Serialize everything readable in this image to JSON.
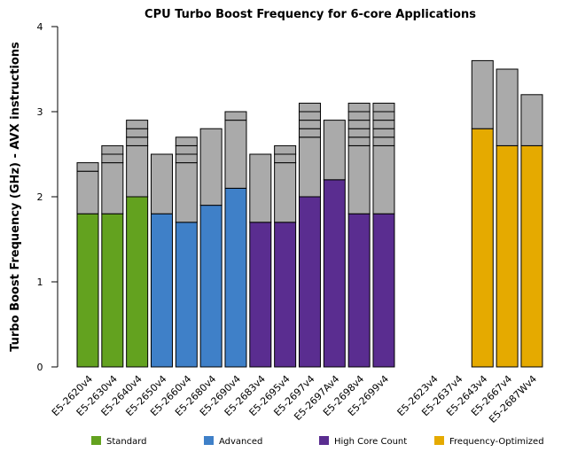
{
  "chart_data": {
    "type": "bar",
    "title": "CPU Turbo Boost Frequency for 6-core Applications",
    "y_label": "Turbo Boost Frequency (GHz) - AVX instructions",
    "categories": [
      "E5-2620v4",
      "E5-2630v4",
      "E5-2640v4",
      "E5-2650v4",
      "E5-2660v4",
      "E5-2680v4",
      "E5-2690v4",
      "E5-2683v4",
      "E5-2695v4",
      "E5-2697v4",
      "E5-2697Av4",
      "E5-2698v4",
      "E5-2699v4",
      null,
      "E5-2623v4",
      "E5-2637v4",
      "E5-2643v4",
      "E5-2667v4",
      "E5-2687Wv4"
    ],
    "series": [
      {
        "name": "Standard",
        "color": "#63a21f",
        "values": [
          1.8,
          1.8,
          2.0,
          null,
          null,
          null,
          null,
          null,
          null,
          null,
          null,
          null,
          null,
          null,
          null,
          null,
          null,
          null,
          null
        ]
      },
      {
        "name": "Advanced",
        "color": "#3f80c8",
        "values": [
          null,
          null,
          null,
          1.8,
          1.7,
          1.9,
          2.1,
          null,
          null,
          null,
          null,
          null,
          null,
          null,
          null,
          null,
          null,
          null,
          null
        ]
      },
      {
        "name": "High Core Count",
        "color": "#5a2d90",
        "values": [
          null,
          null,
          null,
          null,
          null,
          null,
          null,
          1.7,
          1.7,
          2.0,
          2.2,
          1.8,
          1.8,
          null,
          null,
          null,
          null,
          null,
          null
        ]
      },
      {
        "name": "Frequency-Optimized",
        "color": "#e5aa00",
        "values": [
          null,
          null,
          null,
          null,
          null,
          null,
          null,
          null,
          null,
          null,
          null,
          null,
          null,
          null,
          null,
          null,
          2.8,
          2.6,
          2.6
        ]
      }
    ],
    "turbo_color": "#aaaaaa",
    "turbo_steps": [
      [
        0.5,
        0.1
      ],
      [
        0.6,
        0.1,
        0.1
      ],
      [
        0.6,
        0.1,
        0.1,
        0.1
      ],
      [
        0.7
      ],
      [
        0.7,
        0.1,
        0.1,
        0.1
      ],
      [
        0.9
      ],
      [
        0.8,
        0.1
      ],
      [
        0.8
      ],
      [
        0.7,
        0.1,
        0.1
      ],
      [
        0.7,
        0.1,
        0.1,
        0.1,
        0.1
      ],
      [
        0.7
      ],
      [
        0.8,
        0.1,
        0.1,
        0.1,
        0.1,
        0.1
      ],
      [
        0.8,
        0.1,
        0.1,
        0.1,
        0.1,
        0.1
      ],
      [],
      [],
      [],
      [
        0.8
      ],
      [
        0.9
      ],
      [
        0.6
      ]
    ],
    "ylim": [
      0,
      4
    ],
    "yticks": [
      0,
      1,
      2,
      3,
      4
    ]
  }
}
